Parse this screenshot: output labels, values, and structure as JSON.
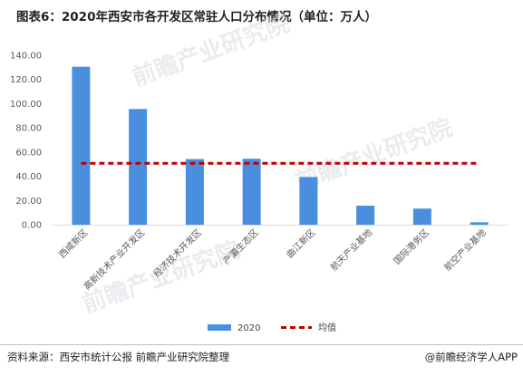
{
  "title": "图表6：2020年西安市各开发区常驻人口分布情况（单位：万人）",
  "source": "资料来源：西安市统计公报 前瞻产业研究院整理",
  "credit": "@前瞻经济学人APP",
  "watermark": "前瞻产业研究院",
  "chart_data": {
    "type": "bar",
    "categories": [
      "西咸新区",
      "高新技术产业开发区",
      "经济技术开发区",
      "产灞生态区",
      "曲江新区",
      "航天产业基地",
      "国际港务区",
      "航空产业基地"
    ],
    "series": [
      {
        "name": "2020",
        "values": [
          130.5,
          95.6,
          54.2,
          54.5,
          39.4,
          15.7,
          13.3,
          2.0
        ],
        "color": "#4a8ee0"
      }
    ],
    "reference_line": {
      "name": "均值",
      "value": 50.7,
      "color": "#c00000",
      "style": "dashed"
    },
    "ylim": [
      0,
      140
    ],
    "yticks": [
      "0.00",
      "20.00",
      "40.00",
      "60.00",
      "80.00",
      "100.00",
      "120.00",
      "140.00"
    ],
    "grid": false,
    "legend": "bottom-center",
    "xlabel": "",
    "ylabel": ""
  }
}
